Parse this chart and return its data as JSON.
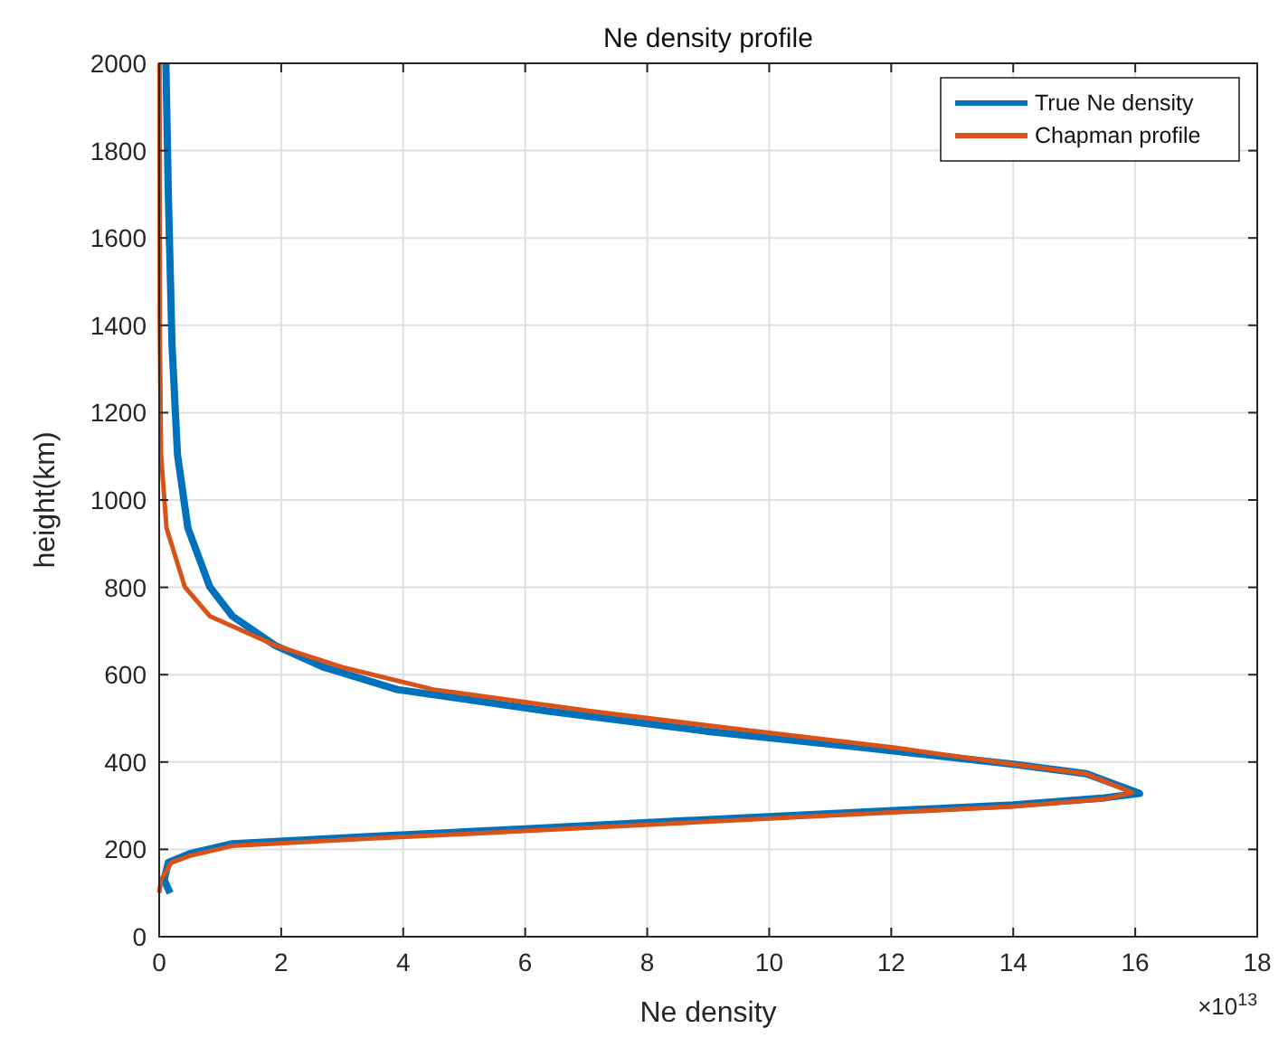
{
  "chart_data": {
    "type": "line",
    "title": "Ne density profile",
    "xlabel": "Ne density",
    "ylabel": "height(km)",
    "annotations": [
      "×10$^{13}$"
    ],
    "xlim": [
      0,
      18
    ],
    "xticks": [
      0,
      2,
      4,
      6,
      8,
      10,
      12,
      14,
      16,
      18
    ],
    "ylim": [
      0,
      2000
    ],
    "yticks": [
      0,
      200,
      400,
      600,
      800,
      1000,
      1200,
      1400,
      1600,
      1800,
      2000
    ],
    "grid": true,
    "legend": "top right",
    "line_style": "solid",
    "marker": "none",
    "series": [
      {
        "name": "True Ne density",
        "color": "#0072bd",
        "x": [
          0.18,
          0.08,
          0.15,
          0.5,
          1.2,
          3.5,
          6.0,
          8.5,
          10.9,
          14,
          15.5,
          16.07,
          15.2,
          14,
          11.6,
          9,
          6.4,
          3.9,
          2.7,
          1.9,
          1.2,
          0.83,
          0.47,
          0.3,
          0.21,
          0.15,
          0.11
        ],
        "values": [
          100,
          130,
          170,
          190,
          213,
          230,
          247,
          265,
          281,
          302,
          318,
          328,
          373,
          395,
          432,
          470,
          516,
          566,
          617,
          667,
          734,
          801,
          936,
          1104,
          1356,
          1700,
          2000
        ]
      },
      {
        "name": "Chapman profile",
        "color": "#d95319",
        "x": [
          0,
          0.03,
          0.2,
          0.5,
          1.2,
          3.5,
          6.0,
          8.5,
          10.9,
          14,
          15.5,
          15.95,
          15.2,
          14,
          12.1,
          9.5,
          7.1,
          4.5,
          3.0,
          1.9,
          0.83,
          0.42,
          0.12,
          0.03,
          0.01,
          0.005
        ],
        "values": [
          100,
          130,
          170,
          185,
          208,
          225,
          242,
          260,
          277,
          298,
          315,
          330,
          373,
          395,
          432,
          475,
          516,
          566,
          617,
          667,
          734,
          801,
          936,
          1104,
          1400,
          2000
        ]
      }
    ]
  }
}
